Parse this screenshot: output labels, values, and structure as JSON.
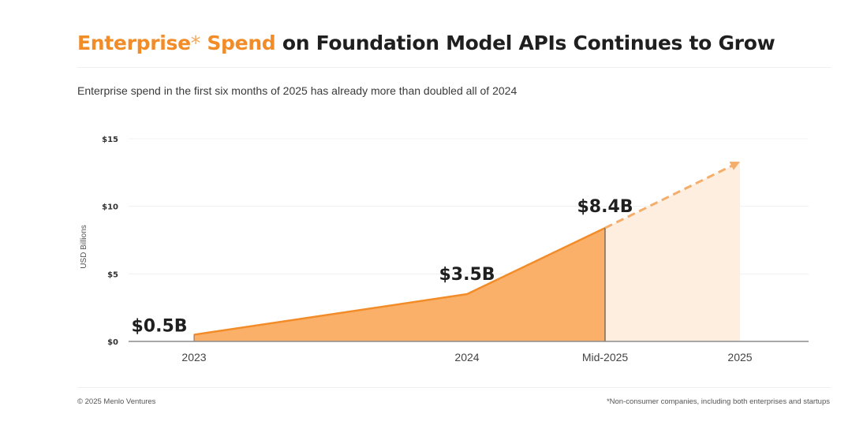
{
  "header": {
    "title_accent": "Enterprise",
    "title_star": "*",
    "title_accent2": " Spend",
    "title_rest": " on Foundation Model APIs Continues to Grow",
    "subtitle": "Enterprise spend in the first six months of 2025 has already more than doubled all of 2024"
  },
  "footer": {
    "copyright": "© 2025 Menlo Ventures",
    "footnote": "*Non-consumer companies, including both enterprises and startups"
  },
  "colors": {
    "accent": "#f28c28",
    "area_fill": "#fbb06a",
    "projection_fill": "#fdeee0",
    "projection_line": "#f4ad6a",
    "text_dark": "#1f1f1f"
  },
  "chart_data": {
    "type": "area",
    "title": "Enterprise* Spend on Foundation Model APIs Continues to Grow",
    "subtitle": "Enterprise spend in the first six months of 2025 has already more than doubled all of 2024",
    "xlabel": "",
    "ylabel": "USD Billions",
    "categories": [
      "2023",
      "2024",
      "Mid-2025",
      "2025"
    ],
    "x_positions": [
      0,
      1,
      1.5,
      2
    ],
    "series": [
      {
        "name": "Actual spend",
        "values": [
          0.5,
          3.5,
          8.4,
          null
        ],
        "labels": [
          "$0.5B",
          "$3.5B",
          "$8.4B",
          null
        ]
      },
      {
        "name": "Projected (dashed arrow)",
        "values": [
          null,
          null,
          8.4,
          13.3
        ],
        "style": "dashed"
      }
    ],
    "ylim": [
      0,
      15
    ],
    "yticks": [
      0,
      5,
      10,
      15
    ],
    "ytick_labels": [
      "$0",
      "$5",
      "$10",
      "$15"
    ],
    "grid": true,
    "legend": "none"
  }
}
